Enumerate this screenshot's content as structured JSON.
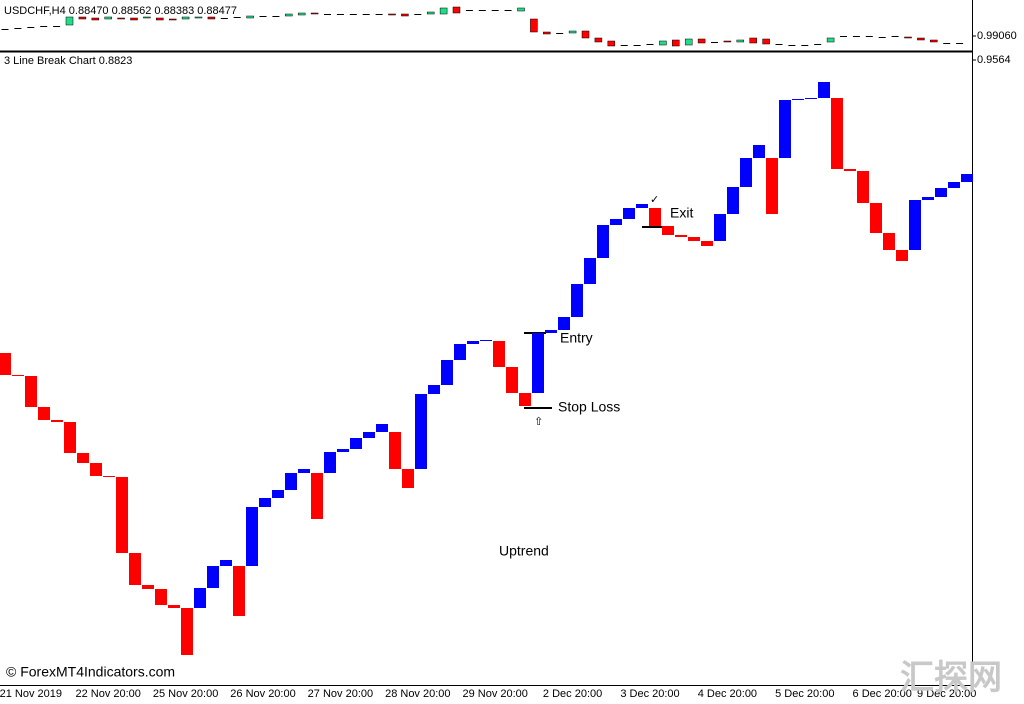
{
  "chart_data": [
    {
      "type": "candlestick",
      "title": "USDCHF,H4  0.88470 0.88562 0.88383 0.88477",
      "categories": [
        null,
        null,
        "21 Nov 2019",
        null,
        null,
        null,
        null,
        null,
        "22 Nov 20:00",
        null,
        null,
        null,
        null,
        null,
        "25 Nov 20:00",
        null,
        null,
        null,
        null,
        null,
        "26 Nov 20:00",
        null,
        null,
        null,
        null,
        null,
        "27 Nov 20:00",
        null,
        null,
        null,
        null,
        null,
        "28 Nov 20:00",
        null,
        null,
        null,
        null,
        null,
        "29 Nov 20:00",
        null,
        null,
        null,
        null,
        null,
        "2 Dec 20:00",
        null,
        null,
        null,
        null,
        null,
        "3 Dec 20:00",
        null,
        null,
        null,
        null,
        null,
        "4 Dec 20:00",
        null,
        null,
        null,
        null,
        null,
        "5 Dec 20:00",
        null,
        null,
        null,
        null,
        null,
        "6 Dec 20:00",
        null,
        null,
        null,
        null,
        "9 Dec 20:00",
        null
      ],
      "open": [
        0.992,
        0.9922,
        0.9924,
        0.9926,
        0.9926,
        0.9928,
        0.9944,
        0.9942,
        0.994,
        0.9942,
        0.9942,
        0.9942,
        0.9942,
        0.994,
        0.994,
        0.9942,
        0.9944,
        0.9942,
        0.9944,
        0.9942,
        0.9946,
        0.9946,
        0.9946,
        0.9948,
        0.9952,
        0.995,
        0.995,
        0.995,
        0.995,
        0.995,
        0.995,
        0.995,
        0.995,
        0.995,
        0.995,
        0.9964,
        0.9958,
        0.9958,
        0.9958,
        0.9958,
        0.9956,
        0.994,
        0.9914,
        0.9912,
        0.9912,
        0.9916,
        0.9902,
        0.9896,
        0.9888,
        0.9888,
        0.989,
        0.9888,
        0.9898,
        0.9888,
        0.99,
        0.9894,
        0.9896,
        0.9894,
        0.9902,
        0.99,
        0.989,
        0.9888,
        0.9888,
        0.989,
        0.9894,
        0.9906,
        0.9906,
        0.9906,
        0.9904,
        0.9906,
        0.9904,
        0.9902,
        0.9898,
        0.9892,
        0.9892
      ],
      "close": [
        0.992,
        0.9922,
        0.9924,
        0.9926,
        0.9926,
        0.9944,
        0.994,
        0.9938,
        0.9944,
        0.994,
        0.9938,
        0.9944,
        0.9938,
        0.9938,
        0.9944,
        0.9944,
        0.994,
        0.9942,
        0.9944,
        0.9946,
        0.9946,
        0.9946,
        0.995,
        0.9952,
        0.995,
        0.995,
        0.995,
        0.995,
        0.995,
        0.995,
        0.9948,
        0.9946,
        0.995,
        0.9954,
        0.9962,
        0.9952,
        0.9958,
        0.9958,
        0.9958,
        0.9958,
        0.9962,
        0.9914,
        0.991,
        0.9912,
        0.9916,
        0.9902,
        0.9894,
        0.9886,
        0.9888,
        0.9888,
        0.989,
        0.9896,
        0.9886,
        0.99,
        0.9892,
        0.9894,
        0.9894,
        0.9898,
        0.9892,
        0.989,
        0.989,
        0.9888,
        0.9888,
        0.989,
        0.9902,
        0.9906,
        0.9906,
        0.9906,
        0.9904,
        0.9906,
        0.9902,
        0.9898,
        0.9894,
        0.9892,
        0.9892
      ],
      "up_color": "#22dd88",
      "down_color": "#ff0000",
      "ylim": [
        0.9878,
        0.9974
      ],
      "yticks": [
        {
          "value": 0.9906,
          "label": "0.99060"
        }
      ]
    },
    {
      "type": "line_break",
      "title": "3 Line Break Chart 0.8823",
      "open": [
        0.94175,
        0.94065,
        0.9406,
        0.93905,
        0.9384,
        0.9383,
        0.93675,
        0.93625,
        0.9356,
        0.93555,
        0.93175,
        0.93015,
        0.92995,
        0.92915,
        0.929,
        0.929,
        0.93,
        0.9311,
        0.9311,
        0.9311,
        0.93405,
        0.9345,
        0.9349,
        0.93575,
        0.93575,
        0.93575,
        0.9368,
        0.93695,
        0.9375,
        0.9378,
        0.9378,
        0.93595,
        0.93595,
        0.9397,
        0.94015,
        0.9414,
        0.9422,
        0.94235,
        0.94235,
        0.94105,
        0.93975,
        0.93975,
        0.94275,
        0.9429,
        0.94355,
        0.9452,
        0.9465,
        0.94815,
        0.94845,
        0.949,
        0.949,
        0.9481,
        0.94765,
        0.94755,
        0.94735,
        0.94735,
        0.9487,
        0.95005,
        0.9515,
        0.9515,
        0.9515,
        0.9544,
        0.95445,
        0.9545,
        0.9545,
        0.95095,
        0.95085,
        0.94925,
        0.94775,
        0.9469,
        0.9469,
        0.9494,
        0.94955,
        0.95,
        0.9503
      ],
      "close": [
        0.94065,
        0.9406,
        0.93905,
        0.9384,
        0.9383,
        0.93675,
        0.93625,
        0.9356,
        0.93555,
        0.93175,
        0.93015,
        0.92995,
        0.92915,
        0.929,
        0.92665,
        0.93,
        0.9311,
        0.9314,
        0.9286,
        0.93405,
        0.9345,
        0.9349,
        0.93575,
        0.93595,
        0.93345,
        0.9368,
        0.93695,
        0.9375,
        0.9378,
        0.9382,
        0.93595,
        0.935,
        0.9397,
        0.94015,
        0.9414,
        0.9422,
        0.94235,
        0.9424,
        0.94105,
        0.93975,
        0.9391,
        0.94275,
        0.9429,
        0.94355,
        0.9452,
        0.9465,
        0.94815,
        0.94845,
        0.949,
        0.9492,
        0.9481,
        0.94765,
        0.94755,
        0.94735,
        0.9471,
        0.9487,
        0.95005,
        0.9515,
        0.95215,
        0.9487,
        0.9544,
        0.95445,
        0.9545,
        0.9553,
        0.95095,
        0.95085,
        0.94925,
        0.94775,
        0.9469,
        0.94635,
        0.9494,
        0.94955,
        0.95,
        0.9503,
        0.9507
      ],
      "up_color": "#0000ff",
      "down_color": "#ff0000",
      "ylim": [
        0.92515,
        0.9568
      ],
      "yticks": [
        0.9564
      ],
      "annotations": [
        "Entry",
        "Exit",
        "Stop Loss",
        "Uptrend",
        "✓",
        "⇧",
        "© ForexMT4Indicators.com"
      ],
      "watermark": "汇探网"
    }
  ]
}
